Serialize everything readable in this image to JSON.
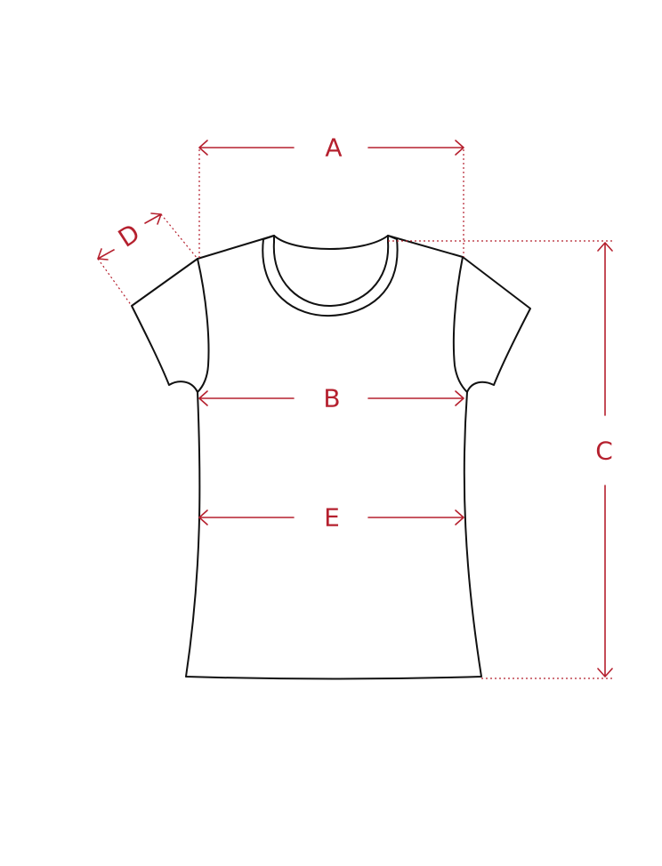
{
  "colors": {
    "outline": "#111111",
    "measure": "#b5202e"
  },
  "labels": {
    "a": "A",
    "b": "B",
    "c": "C",
    "d": "D",
    "e": "E"
  }
}
